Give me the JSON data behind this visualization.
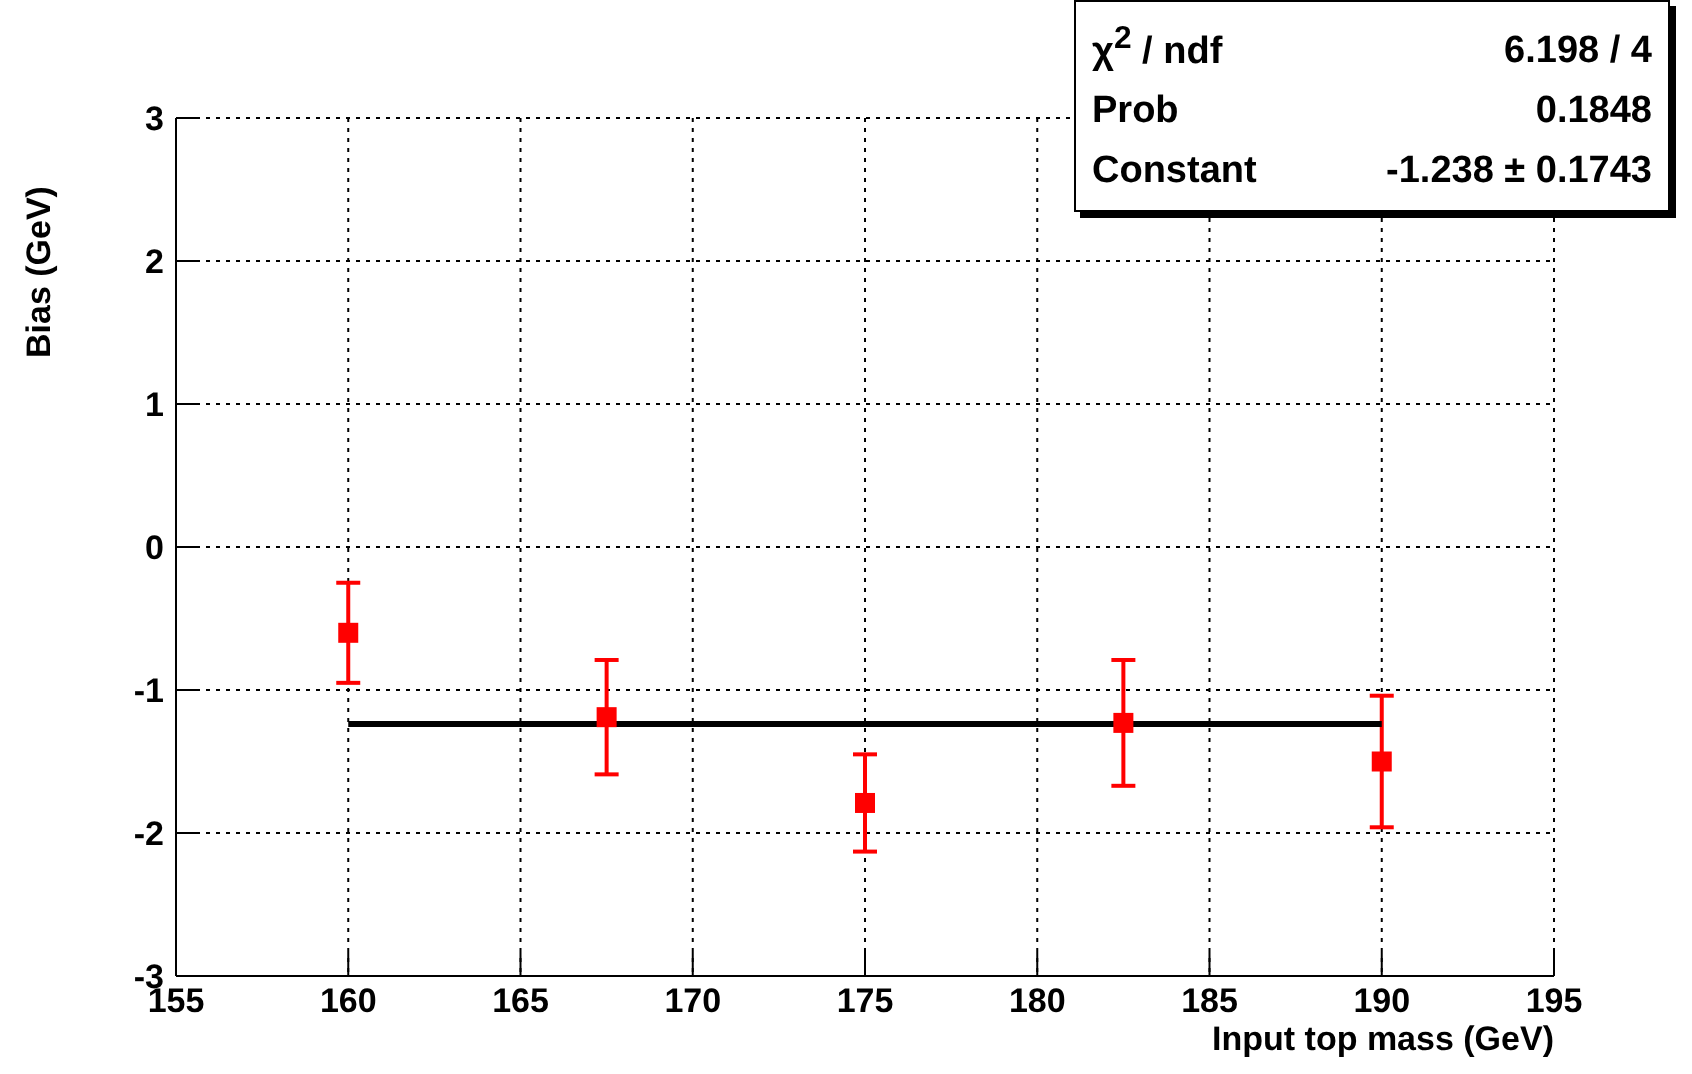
{
  "chart_data": {
    "type": "scatter",
    "xlabel": "Input top mass (GeV)",
    "ylabel": "Bias (GeV)",
    "xlim": [
      155,
      195
    ],
    "xticks": [
      155,
      160,
      165,
      170,
      175,
      180,
      185,
      190,
      195
    ],
    "ylim": [
      -3,
      3
    ],
    "yticks": [
      -3,
      -2,
      -1,
      0,
      1,
      2,
      3
    ],
    "grid": true,
    "marker": "square",
    "series": [
      {
        "color": "#ff0000",
        "x": [
          160,
          167.5,
          175,
          182.5,
          190
        ],
        "values": [
          -0.6,
          -1.19,
          -1.79,
          -1.23,
          -1.5
        ],
        "errors": [
          0.35,
          0.4,
          0.34,
          0.44,
          0.46
        ]
      },
      {
        "type": "line",
        "color": "#000000",
        "marker": "none",
        "x": [
          160,
          190
        ],
        "values": [
          -1.238,
          -1.238
        ]
      }
    ],
    "annotations": [
      "χ$^{2}$ / ndf",
      "6.198 / 4",
      "Prob",
      "0.1848",
      "Constant",
      "-1.238 ± 0.1743"
    ]
  }
}
